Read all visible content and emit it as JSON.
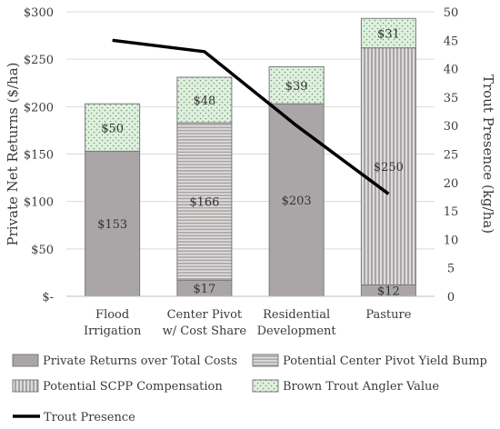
{
  "chart_data": {
    "type": "bar",
    "stacked": true,
    "categories": [
      [
        "Flood",
        "Irrigation"
      ],
      [
        "Center Pivot",
        "w/ Cost Share"
      ],
      [
        "Residential",
        "Development"
      ],
      [
        "Pasture"
      ]
    ],
    "ylabel": "Private Net Returns ($/ha)",
    "y2label": "Trout Presence (kg/ha)",
    "ylim": [
      0,
      300
    ],
    "y2lim": [
      0,
      50
    ],
    "yticks": [
      {
        "value": 0,
        "label": "$-"
      },
      {
        "value": 50,
        "label": "$50"
      },
      {
        "value": 100,
        "label": "$100"
      },
      {
        "value": 150,
        "label": "$150"
      },
      {
        "value": 200,
        "label": "$200"
      },
      {
        "value": 250,
        "label": "$250"
      },
      {
        "value": 300,
        "label": "$300"
      }
    ],
    "y2ticks": [
      0,
      5,
      10,
      15,
      20,
      25,
      30,
      35,
      40,
      45,
      50
    ],
    "series": [
      {
        "name": "Private Returns over Total Costs",
        "values": [
          153,
          17,
          203,
          12
        ],
        "labels": [
          "$153",
          "$17",
          "$203",
          "$12"
        ],
        "color": "#aaa5a6",
        "pattern": "solid"
      },
      {
        "name": "Potential Center Pivot Yield Bump",
        "values": [
          0,
          166,
          0,
          0
        ],
        "labels": [
          "",
          "$166",
          "",
          ""
        ],
        "color": "#c9c6c6",
        "pattern": "horizontal-stripes"
      },
      {
        "name": "Potential SCPP Compensation",
        "values": [
          0,
          0,
          0,
          250
        ],
        "labels": [
          "",
          "",
          "",
          "$250"
        ],
        "color": "#b9b5b5",
        "pattern": "vertical-stripes"
      },
      {
        "name": "Brown Trout Angler Value",
        "values": [
          50,
          48,
          39,
          31
        ],
        "labels": [
          "$50",
          "$48",
          "$39",
          "$31"
        ],
        "color": "#dcefdc",
        "pattern": "dots"
      }
    ],
    "line": {
      "name": "Trout Presence",
      "axis": "right",
      "values": [
        45,
        43,
        30,
        18
      ],
      "color": "#000000"
    },
    "grid": true,
    "legend_position": "bottom"
  }
}
